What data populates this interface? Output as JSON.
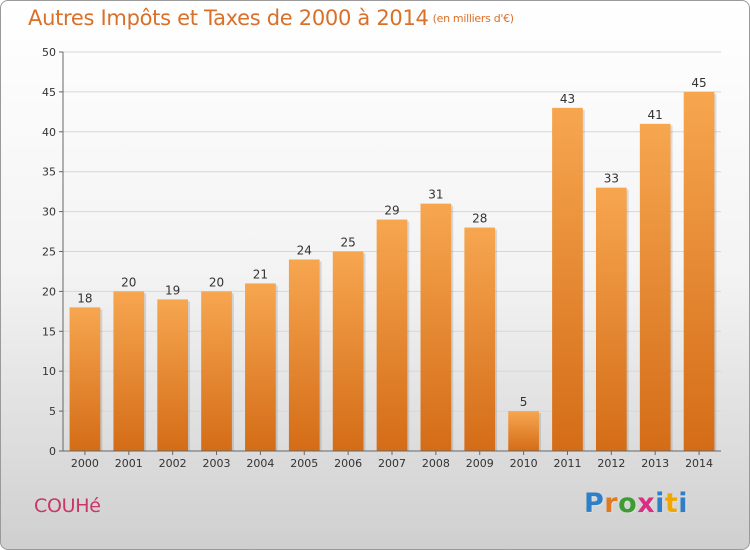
{
  "header": {
    "title": "Autres Impôts et Taxes de 2000 à 2014",
    "unit": "(en milliers d'€)"
  },
  "footer": {
    "commune": "COUHé",
    "logo_letters": [
      "P",
      "r",
      "o",
      "x",
      "i",
      "t",
      "i"
    ],
    "logo_colors": [
      "#2e7fc7",
      "#e07a1f",
      "#3f9c35",
      "#d82f85",
      "#2e7fc7",
      "#f1a700",
      "#2e7fc7"
    ]
  },
  "chart_data": {
    "type": "bar",
    "title": "Autres Impôts et Taxes de 2000 à 2014",
    "ylabel": "",
    "xlabel": "",
    "ylim": [
      0,
      50
    ],
    "yticks": [
      0,
      5,
      10,
      15,
      20,
      25,
      30,
      35,
      40,
      45,
      50
    ],
    "grid": true,
    "bar_color_top": "#f7a650",
    "bar_color_bottom": "#d46c17",
    "categories": [
      "2000",
      "2001",
      "2002",
      "2003",
      "2004",
      "2005",
      "2006",
      "2007",
      "2008",
      "2009",
      "2010",
      "2011",
      "2012",
      "2013",
      "2014"
    ],
    "values": [
      18,
      20,
      19,
      20,
      21,
      24,
      25,
      29,
      31,
      28,
      5,
      43,
      33,
      41,
      45
    ]
  }
}
